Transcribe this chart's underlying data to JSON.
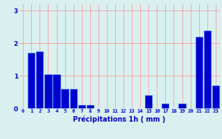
{
  "hours": [
    0,
    1,
    2,
    3,
    4,
    5,
    6,
    7,
    8,
    9,
    10,
    11,
    12,
    13,
    14,
    15,
    16,
    17,
    18,
    19,
    20,
    21,
    22,
    23
  ],
  "values": [
    0,
    1.7,
    1.75,
    1.05,
    1.05,
    0.6,
    0.6,
    0.1,
    0.1,
    0,
    0,
    0,
    0,
    0,
    0,
    0.4,
    0,
    0.15,
    0,
    0.15,
    0,
    2.2,
    2.4,
    0.7
  ],
  "bar_color": "#0000cc",
  "bar_edge_color": "#1a66ff",
  "background_color": "#d8f0f0",
  "grid_color": "#ff9999",
  "xlabel": "Précipitations 1h ( mm )",
  "xlabel_color": "#0000cc",
  "tick_color": "#0000cc",
  "yticks": [
    0,
    1,
    2,
    3
  ],
  "ylim": [
    0,
    3.2
  ],
  "xlim": [
    -0.5,
    23.5
  ]
}
